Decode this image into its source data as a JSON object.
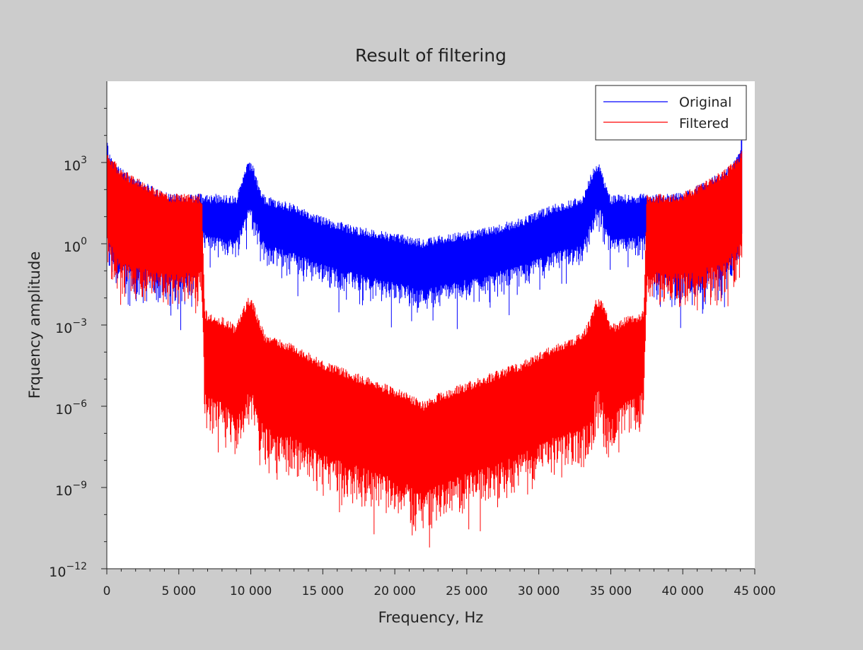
{
  "chart_data": {
    "type": "line",
    "title": "Result of filtering",
    "xlabel": "Frequency, Hz",
    "ylabel": "Frquency amplitude",
    "xlim": [
      0,
      45000
    ],
    "ylim": [
      1e-12,
      1000000.0
    ],
    "y_scale": "log",
    "x_ticks": [
      0,
      5000,
      10000,
      15000,
      20000,
      25000,
      30000,
      35000,
      40000,
      45000
    ],
    "x_tick_labels": [
      "0",
      "5 000",
      "10 000",
      "15 000",
      "20 000",
      "25 000",
      "30 000",
      "35 000",
      "40 000",
      "45 000"
    ],
    "y_ticks": [
      {
        "value": 1e-12,
        "base": "10",
        "exp": "−12"
      },
      {
        "value": 1e-09,
        "base": "10",
        "exp": "−9"
      },
      {
        "value": 1e-06,
        "base": "10",
        "exp": "−6"
      },
      {
        "value": 0.001,
        "base": "10",
        "exp": "−3"
      },
      {
        "value": 1,
        "base": "10",
        "exp": "0"
      },
      {
        "value": 1000.0,
        "base": "10",
        "exp": "3"
      }
    ],
    "grid": false,
    "legend": "top-right",
    "series": [
      {
        "name": "Original",
        "color": "#0000ff",
        "envelope_x": [
          0,
          100,
          500,
          1000,
          2000,
          3000,
          4000,
          5000,
          6000,
          6700,
          7000,
          8000,
          9000,
          9500,
          9800,
          10100,
          10500,
          11000,
          13000,
          15000,
          17000,
          19000,
          21000,
          22050,
          23000,
          25000,
          27000,
          29000,
          31000,
          33000,
          33600,
          34000,
          34300,
          34600,
          35000,
          36000,
          37000,
          37400,
          38000,
          39000,
          40000,
          41000,
          42000,
          43000,
          43600,
          44000,
          44100
        ],
        "envelope_top": [
          30000,
          3000,
          1200,
          600,
          300,
          150,
          80,
          70,
          70,
          70,
          70,
          70,
          60,
          400,
          1000,
          1000,
          200,
          60,
          30,
          10,
          5,
          3,
          2,
          1.5,
          2,
          3,
          5,
          10,
          30,
          60,
          400,
          1000,
          1000,
          200,
          60,
          70,
          70,
          70,
          70,
          70,
          80,
          150,
          300,
          600,
          1200,
          3000,
          30000
        ],
        "envelope_bottom": [
          0.05,
          0.02,
          0.01,
          0.003,
          0.003,
          0.002,
          0.002,
          0.002,
          0.003,
          0.5,
          0.3,
          0.2,
          0.2,
          1,
          3,
          3,
          0.5,
          0.1,
          0.05,
          0.02,
          0.01,
          0.005,
          0.003,
          0.002,
          0.003,
          0.005,
          0.01,
          0.02,
          0.05,
          0.1,
          0.5,
          3,
          3,
          1,
          0.2,
          0.2,
          0.3,
          0.5,
          0.003,
          0.002,
          0.002,
          0.002,
          0.003,
          0.003,
          0.01,
          0.02,
          0.05
        ]
      },
      {
        "name": "Filtered",
        "color": "#ff0000",
        "envelope_x": [
          0,
          100,
          500,
          1000,
          2000,
          3000,
          4000,
          5000,
          6000,
          6600,
          6800,
          7000,
          8000,
          9000,
          9500,
          9800,
          10100,
          10500,
          11000,
          13000,
          15000,
          17000,
          19000,
          21000,
          22050,
          23000,
          25000,
          27000,
          29000,
          31000,
          33000,
          33600,
          34000,
          34300,
          34600,
          35000,
          36000,
          37000,
          37300,
          37500,
          38000,
          39000,
          40000,
          41000,
          42000,
          43000,
          43600,
          44000,
          44100
        ],
        "envelope_top": [
          3000,
          2500,
          1200,
          600,
          300,
          150,
          80,
          70,
          70,
          70,
          0.004,
          0.003,
          0.002,
          0.001,
          0.005,
          0.01,
          0.01,
          0.002,
          0.0005,
          0.0002,
          5e-05,
          2e-05,
          8e-06,
          3e-06,
          1.5e-06,
          3e-06,
          8e-06,
          2e-05,
          5e-05,
          0.0002,
          0.0005,
          0.002,
          0.01,
          0.01,
          0.005,
          0.001,
          0.002,
          0.003,
          0.004,
          70,
          70,
          70,
          80,
          150,
          300,
          600,
          1200,
          2500,
          3000
        ],
        "envelope_bottom": [
          0.05,
          0.02,
          0.01,
          0.003,
          0.003,
          0.002,
          0.002,
          0.002,
          0.003,
          0.003,
          1e-07,
          5e-08,
          3e-08,
          5e-09,
          1e-08,
          5e-08,
          5e-08,
          5e-09,
          2e-09,
          1e-09,
          3e-10,
          1e-10,
          5e-11,
          2e-11,
          1e-11,
          2e-11,
          5e-11,
          1e-10,
          3e-10,
          1e-09,
          2e-09,
          5e-09,
          5e-08,
          5e-08,
          1e-08,
          5e-09,
          3e-08,
          5e-08,
          1e-07,
          0.003,
          0.003,
          0.002,
          0.002,
          0.002,
          0.003,
          0.003,
          0.01,
          0.02,
          0.05
        ]
      }
    ]
  }
}
